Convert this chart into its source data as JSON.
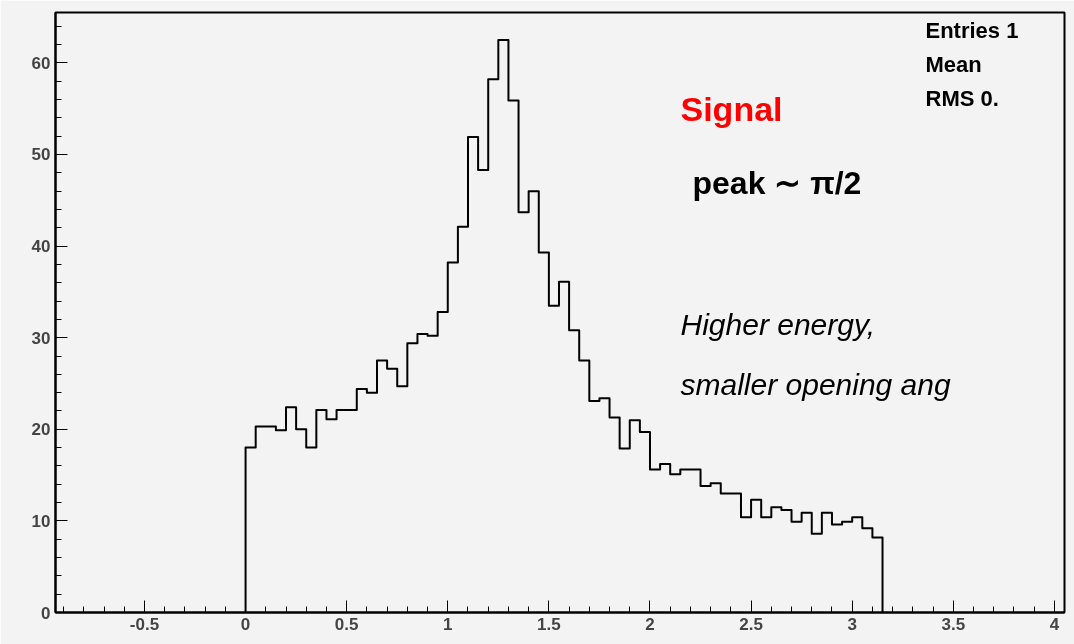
{
  "chart_data": {
    "type": "histogram",
    "bins": [
      0,
      0.05,
      0.1,
      0.15,
      0.2,
      0.25,
      0.3,
      0.35,
      0.4,
      0.45,
      0.5,
      0.55,
      0.6,
      0.65,
      0.7,
      0.75,
      0.8,
      0.85,
      0.9,
      0.95,
      1.0,
      1.05,
      1.1,
      1.15,
      1.2,
      1.25,
      1.3,
      1.35,
      1.4,
      1.45,
      1.5,
      1.55,
      1.6,
      1.65,
      1.7,
      1.75,
      1.8,
      1.85,
      1.9,
      1.95,
      2.0,
      2.05,
      2.1,
      2.15,
      2.2,
      2.25,
      2.3,
      2.35,
      2.4,
      2.45,
      2.5,
      2.55,
      2.6,
      2.65,
      2.7,
      2.75,
      2.8,
      2.85,
      2.9,
      2.95,
      3.0,
      3.05,
      3.1,
      3.15
    ],
    "values": [
      18.0,
      20.3,
      20.3,
      19.9,
      22.4,
      20.0,
      18.0,
      22.1,
      21.1,
      22.1,
      22.1,
      24.4,
      24.0,
      27.5,
      26.6,
      24.7,
      29.4,
      30.4,
      30.2,
      32.8,
      38.2,
      42.1,
      51.9,
      48.3,
      58.2,
      62.5,
      55.9,
      43.7,
      46.0,
      39.3,
      33.5,
      36.1,
      30.8,
      27.5,
      23.1,
      23.4,
      21.3,
      17.9,
      21.0,
      19.7,
      15.6,
      16.2,
      15.1,
      15.6,
      15.6,
      13.8,
      14.1,
      13.0,
      13.0,
      10.4,
      12.3,
      10.4,
      11.5,
      11.2,
      9.9,
      10.9,
      8.6,
      10.9,
      9.6,
      9.9,
      10.4,
      9.2,
      8.2
    ],
    "color": "#000000",
    "xlim": [
      -0.94,
      4.05
    ],
    "ylim": [
      0,
      65.5
    ],
    "xticks": [
      -0.5,
      0,
      0.5,
      1,
      1.5,
      2,
      2.5,
      3,
      3.5,
      4
    ],
    "yticks": [
      0,
      10,
      20,
      30,
      40,
      50,
      60
    ],
    "grid": false,
    "annotations": [
      "Signal",
      "peak ∼ π/2",
      "Higher energy,",
      " smaller opening ang",
      "Entries 1",
      "Mean",
      "RMS 0."
    ]
  }
}
